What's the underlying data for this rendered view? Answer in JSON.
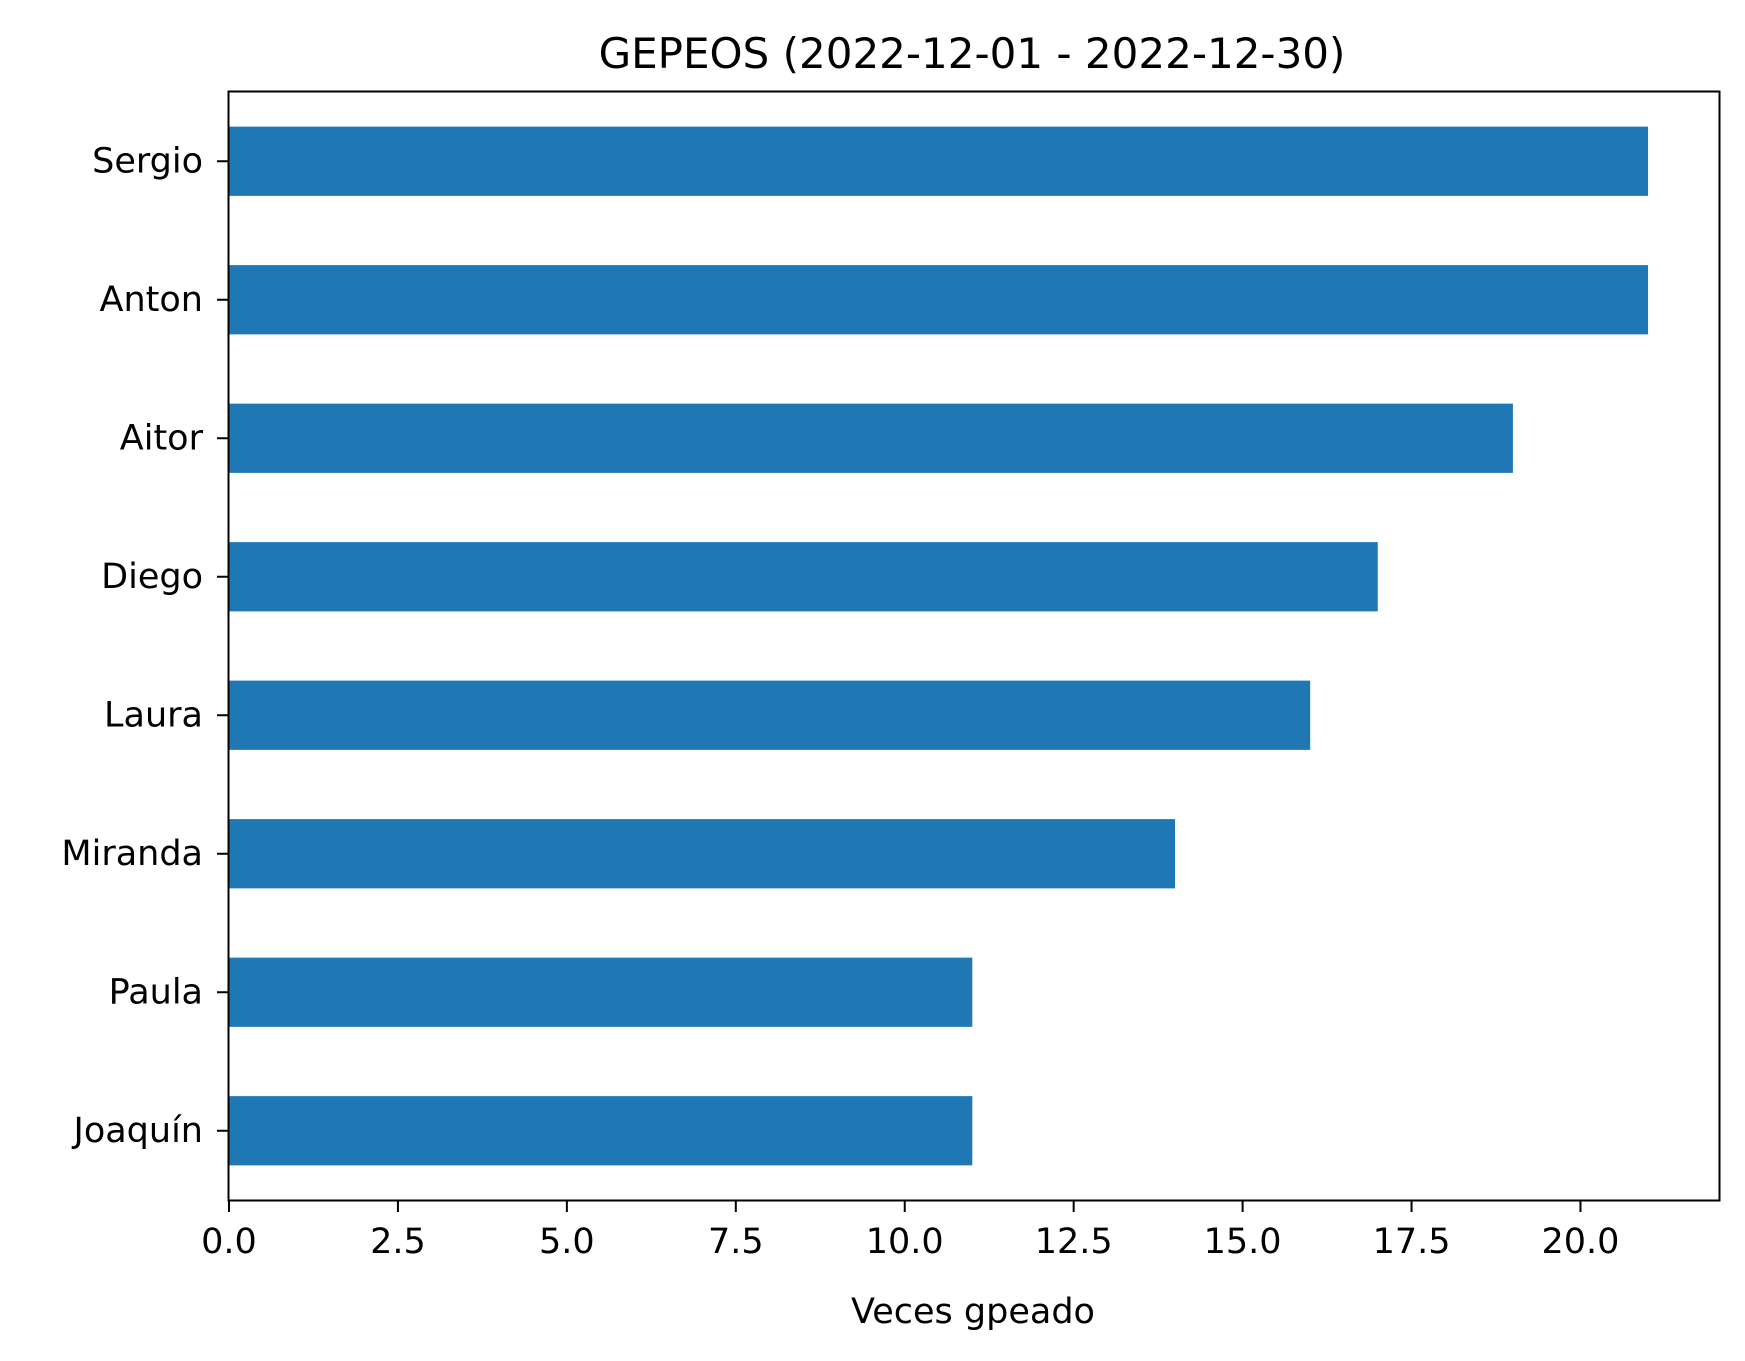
{
  "chart_data": {
    "type": "bar",
    "orientation": "horizontal",
    "title": "GEPEOS (2022-12-01 - 2022-12-30)",
    "xlabel": "Veces gpeado",
    "ylabel": "",
    "categories": [
      "Sergio",
      "Anton",
      "Aitor",
      "Diego",
      "Laura",
      "Miranda",
      "Paula",
      "Joaquín"
    ],
    "values": [
      21,
      21,
      19,
      17,
      16,
      14,
      11,
      11
    ],
    "xlim": [
      0,
      22.05
    ],
    "xticks": [
      0.0,
      2.5,
      5.0,
      7.5,
      10.0,
      12.5,
      15.0,
      17.5,
      20.0
    ],
    "xtick_labels": [
      "0.0",
      "2.5",
      "5.0",
      "7.5",
      "10.0",
      "12.5",
      "15.0",
      "17.5",
      "20.0"
    ],
    "bar_color": "#1f77b4",
    "grid": false,
    "legend": "none"
  }
}
